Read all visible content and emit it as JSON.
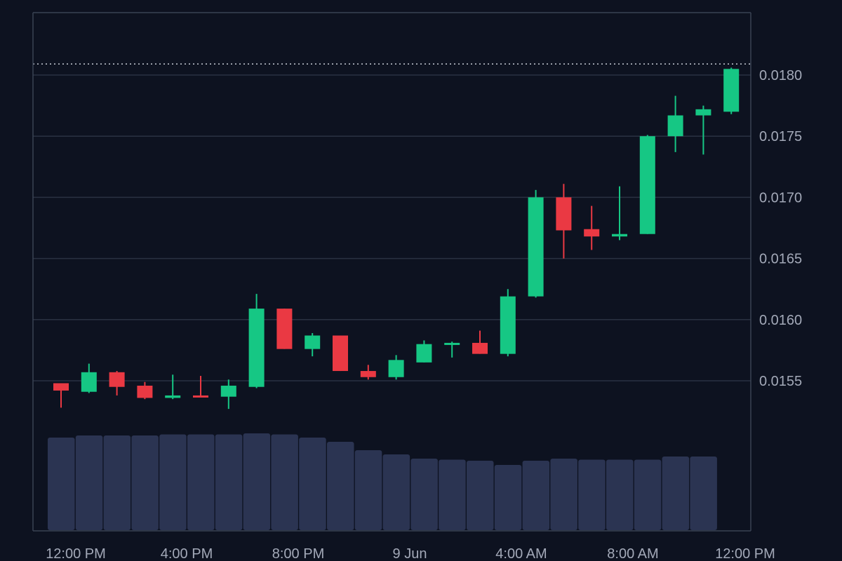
{
  "colors": {
    "background": "#0d1220",
    "grid": "#2a3142",
    "frame": "#3a4252",
    "up": "#16c784",
    "down": "#ea3943",
    "volume": "#2b3452",
    "axis_text": "#a3a9b8",
    "last_price_line": "#c9ced8"
  },
  "chart_data": {
    "type": "candlestick",
    "title": "",
    "xlabel": "",
    "ylabel": "",
    "ylim": [
      0.01505,
      0.0184
    ],
    "y_ticks": [
      "0.0155",
      "0.0160",
      "0.0165",
      "0.0170",
      "0.0175",
      "0.0180"
    ],
    "x_ticks": [
      "12:00 PM",
      "4:00 PM",
      "8:00 PM",
      "9 Jun",
      "4:00 AM",
      "8:00 AM",
      "12:00 PM"
    ],
    "grid": true,
    "last_price": 0.01805,
    "candles": [
      {
        "open": 0.01548,
        "high": 0.01548,
        "low": 0.01528,
        "close": 0.01542
      },
      {
        "open": 0.01541,
        "high": 0.01564,
        "low": 0.0154,
        "close": 0.01557
      },
      {
        "open": 0.01557,
        "high": 0.01558,
        "low": 0.01538,
        "close": 0.01545
      },
      {
        "open": 0.01546,
        "high": 0.01549,
        "low": 0.01535,
        "close": 0.01536
      },
      {
        "open": 0.01536,
        "high": 0.01555,
        "low": 0.01535,
        "close": 0.01538
      },
      {
        "open": 0.01538,
        "high": 0.01554,
        "low": 0.01537,
        "close": 0.01537
      },
      {
        "open": 0.01537,
        "high": 0.01551,
        "low": 0.01527,
        "close": 0.01546
      },
      {
        "open": 0.01545,
        "high": 0.01621,
        "low": 0.01544,
        "close": 0.01609
      },
      {
        "open": 0.01609,
        "high": 0.01609,
        "low": 0.01576,
        "close": 0.01576
      },
      {
        "open": 0.01576,
        "high": 0.01589,
        "low": 0.0157,
        "close": 0.01587
      },
      {
        "open": 0.01587,
        "high": 0.01587,
        "low": 0.01558,
        "close": 0.01558
      },
      {
        "open": 0.01558,
        "high": 0.01563,
        "low": 0.01551,
        "close": 0.01553
      },
      {
        "open": 0.01553,
        "high": 0.01571,
        "low": 0.01551,
        "close": 0.01567
      },
      {
        "open": 0.01565,
        "high": 0.01583,
        "low": 0.01565,
        "close": 0.0158
      },
      {
        "open": 0.0158,
        "high": 0.01582,
        "low": 0.01569,
        "close": 0.01581
      },
      {
        "open": 0.01581,
        "high": 0.01591,
        "low": 0.01572,
        "close": 0.01572
      },
      {
        "open": 0.01572,
        "high": 0.01625,
        "low": 0.0157,
        "close": 0.01619
      },
      {
        "open": 0.01619,
        "high": 0.01706,
        "low": 0.01618,
        "close": 0.017
      },
      {
        "open": 0.017,
        "high": 0.01711,
        "low": 0.0165,
        "close": 0.01673
      },
      {
        "open": 0.01674,
        "high": 0.01693,
        "low": 0.01657,
        "close": 0.01668
      },
      {
        "open": 0.01668,
        "high": 0.01709,
        "low": 0.01665,
        "close": 0.0167
      },
      {
        "open": 0.0167,
        "high": 0.01751,
        "low": 0.0167,
        "close": 0.0175
      },
      {
        "open": 0.0175,
        "high": 0.01783,
        "low": 0.01737,
        "close": 0.01767
      },
      {
        "open": 0.01767,
        "high": 0.01775,
        "low": 0.01735,
        "close": 0.01772
      },
      {
        "open": 0.0177,
        "high": 0.01806,
        "low": 0.01768,
        "close": 0.01805
      }
    ],
    "volume_relative": [
      0.88,
      0.9,
      0.9,
      0.9,
      0.91,
      0.91,
      0.91,
      0.92,
      0.91,
      0.88,
      0.84,
      0.76,
      0.72,
      0.68,
      0.67,
      0.66,
      0.62,
      0.66,
      0.68,
      0.67,
      0.67,
      0.67,
      0.7,
      0.7
    ]
  }
}
